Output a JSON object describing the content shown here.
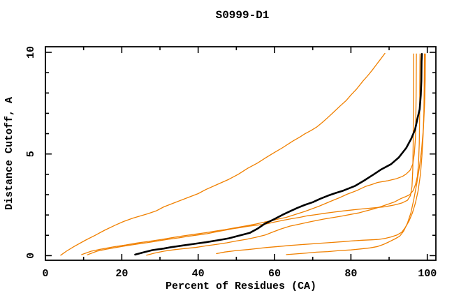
{
  "title": "S0999-D1",
  "axes": {
    "xlabel": "Percent of Residues (CA)",
    "ylabel": "Distance Cutoff, A",
    "x_major_ticks": [
      0,
      20,
      40,
      60,
      80,
      100
    ],
    "x_minor_ticks": [
      10,
      30,
      50,
      70,
      90
    ],
    "y_major_ticks": [
      0,
      5,
      10
    ],
    "y_minor_ticks": [
      1,
      2,
      3,
      4,
      6,
      7,
      8,
      9
    ],
    "xlim": [
      0,
      100
    ],
    "ylim": [
      0,
      10
    ]
  },
  "colors": {
    "curve_orange": "#f08000",
    "curve_black": "#000000",
    "frame": "#000000",
    "background": "#ffffff"
  },
  "chart_data": {
    "type": "line",
    "title": "S0999-D1",
    "xlabel": "Percent of Residues (CA)",
    "ylabel": "Distance Cutoff, A",
    "xlim": [
      0,
      100
    ],
    "ylim": [
      0,
      10
    ],
    "grid": false,
    "legend": "none",
    "series": [
      {
        "name": "curve-1",
        "color": "#f08000",
        "width": 1.3,
        "points": [
          [
            4,
            0.02
          ],
          [
            5.5,
            0.22
          ],
          [
            7.5,
            0.45
          ],
          [
            10.4,
            0.75
          ],
          [
            13,
            1.0
          ],
          [
            15.5,
            1.25
          ],
          [
            18.3,
            1.5
          ],
          [
            20.5,
            1.68
          ],
          [
            23,
            1.85
          ],
          [
            26.8,
            2.06
          ],
          [
            29,
            2.2
          ],
          [
            31,
            2.4
          ],
          [
            34,
            2.62
          ],
          [
            37.2,
            2.85
          ],
          [
            40,
            3.05
          ],
          [
            42,
            3.25
          ],
          [
            45,
            3.5
          ],
          [
            48,
            3.75
          ],
          [
            50.5,
            4.0
          ],
          [
            53,
            4.3
          ],
          [
            55.5,
            4.55
          ],
          [
            58,
            4.85
          ],
          [
            60,
            5.08
          ],
          [
            62,
            5.3
          ],
          [
            64.9,
            5.65
          ],
          [
            66.5,
            5.82
          ],
          [
            68,
            6.0
          ],
          [
            69.5,
            6.15
          ],
          [
            71,
            6.32
          ],
          [
            72.5,
            6.55
          ],
          [
            74,
            6.8
          ],
          [
            75.7,
            7.1
          ],
          [
            77.4,
            7.4
          ],
          [
            78.7,
            7.62
          ],
          [
            80,
            7.9
          ],
          [
            81.5,
            8.2
          ],
          [
            83.2,
            8.6
          ],
          [
            84.4,
            8.85
          ],
          [
            85.5,
            9.1
          ],
          [
            86.5,
            9.35
          ],
          [
            87.5,
            9.6
          ],
          [
            88.9,
            9.95
          ]
        ]
      },
      {
        "name": "curve-2",
        "color": "#f08000",
        "width": 1.3,
        "points": [
          [
            9.5,
            0.05
          ],
          [
            12,
            0.22
          ],
          [
            14,
            0.3
          ],
          [
            18,
            0.44
          ],
          [
            21,
            0.52
          ],
          [
            24,
            0.62
          ],
          [
            27,
            0.7
          ],
          [
            30.5,
            0.8
          ],
          [
            33,
            0.88
          ],
          [
            36,
            0.97
          ],
          [
            39,
            1.05
          ],
          [
            42,
            1.13
          ],
          [
            45,
            1.22
          ],
          [
            47,
            1.28
          ],
          [
            49,
            1.35
          ],
          [
            51.2,
            1.42
          ],
          [
            53,
            1.48
          ],
          [
            55,
            1.55
          ],
          [
            57.6,
            1.66
          ],
          [
            59.4,
            1.72
          ],
          [
            61,
            1.8
          ],
          [
            63,
            1.88
          ],
          [
            65,
            2.0
          ],
          [
            68,
            2.18
          ],
          [
            71.5,
            2.42
          ],
          [
            75.3,
            2.72
          ],
          [
            77,
            2.85
          ],
          [
            79,
            3.02
          ],
          [
            81.5,
            3.2
          ],
          [
            83.8,
            3.4
          ],
          [
            85.5,
            3.5
          ],
          [
            87,
            3.6
          ],
          [
            89.5,
            3.68
          ],
          [
            91.8,
            3.78
          ],
          [
            93.5,
            3.9
          ],
          [
            94.5,
            4.02
          ],
          [
            95.5,
            4.2
          ],
          [
            96.2,
            4.5
          ],
          [
            96.6,
            5.0
          ],
          [
            96.9,
            5.8
          ],
          [
            97.0,
            6.8
          ],
          [
            97.1,
            8.2
          ],
          [
            97.15,
            9.92
          ]
        ]
      },
      {
        "name": "curve-3",
        "color": "#f08000",
        "width": 1.3,
        "points": [
          [
            11,
            0.04
          ],
          [
            13.5,
            0.22
          ],
          [
            16,
            0.32
          ],
          [
            19,
            0.42
          ],
          [
            21,
            0.48
          ],
          [
            24,
            0.57
          ],
          [
            27,
            0.65
          ],
          [
            30,
            0.74
          ],
          [
            32,
            0.8
          ],
          [
            35,
            0.88
          ],
          [
            37,
            0.94
          ],
          [
            40,
            1.02
          ],
          [
            42.4,
            1.08
          ],
          [
            45,
            1.18
          ],
          [
            47,
            1.25
          ],
          [
            49,
            1.32
          ],
          [
            51,
            1.38
          ],
          [
            53,
            1.44
          ],
          [
            55,
            1.49
          ],
          [
            57.6,
            1.55
          ],
          [
            60,
            1.65
          ],
          [
            62,
            1.73
          ],
          [
            64.5,
            1.82
          ],
          [
            66.5,
            1.88
          ],
          [
            68.6,
            1.96
          ],
          [
            71,
            2.02
          ],
          [
            73,
            2.08
          ],
          [
            75.5,
            2.14
          ],
          [
            78,
            2.2
          ],
          [
            80.5,
            2.25
          ],
          [
            83,
            2.3
          ],
          [
            85.5,
            2.34
          ],
          [
            88.7,
            2.4
          ],
          [
            90.5,
            2.46
          ],
          [
            92,
            2.52
          ],
          [
            93.5,
            2.6
          ],
          [
            94.8,
            2.72
          ],
          [
            95.6,
            2.95
          ],
          [
            96.0,
            3.4
          ],
          [
            96.2,
            4.2
          ],
          [
            96.3,
            5.5
          ],
          [
            96.35,
            7.0
          ],
          [
            96.4,
            9.92
          ]
        ]
      },
      {
        "name": "curve-4",
        "color": "#f08000",
        "width": 1.3,
        "points": [
          [
            26.5,
            0.02
          ],
          [
            28.5,
            0.12
          ],
          [
            31,
            0.22
          ],
          [
            34,
            0.3
          ],
          [
            36.5,
            0.35
          ],
          [
            39.3,
            0.4
          ],
          [
            42,
            0.48
          ],
          [
            45,
            0.56
          ],
          [
            47.5,
            0.63
          ],
          [
            50,
            0.72
          ],
          [
            52.5,
            0.8
          ],
          [
            55,
            0.9
          ],
          [
            57.6,
            1.02
          ],
          [
            59.4,
            1.15
          ],
          [
            61.5,
            1.3
          ],
          [
            64,
            1.45
          ],
          [
            66.5,
            1.55
          ],
          [
            69,
            1.65
          ],
          [
            71,
            1.73
          ],
          [
            73,
            1.8
          ],
          [
            75.5,
            1.88
          ],
          [
            77.7,
            1.95
          ],
          [
            80,
            2.03
          ],
          [
            82,
            2.1
          ],
          [
            84,
            2.2
          ],
          [
            86,
            2.3
          ],
          [
            88,
            2.42
          ],
          [
            90,
            2.55
          ],
          [
            91.5,
            2.65
          ],
          [
            93,
            2.8
          ],
          [
            94.3,
            2.9
          ],
          [
            95.4,
            3.0
          ],
          [
            96.3,
            3.2
          ],
          [
            96.9,
            3.5
          ],
          [
            97.4,
            3.9
          ],
          [
            97.7,
            4.5
          ],
          [
            97.9,
            5.5
          ],
          [
            98.0,
            7.0
          ],
          [
            98.05,
            8.5
          ],
          [
            98.1,
            9.92
          ]
        ]
      },
      {
        "name": "curve-5",
        "color": "#f08000",
        "width": 1.3,
        "points": [
          [
            44.8,
            0.1
          ],
          [
            47,
            0.18
          ],
          [
            50,
            0.25
          ],
          [
            53,
            0.3
          ],
          [
            55,
            0.34
          ],
          [
            58,
            0.4
          ],
          [
            61,
            0.45
          ],
          [
            64,
            0.5
          ],
          [
            66,
            0.53
          ],
          [
            69,
            0.57
          ],
          [
            72,
            0.61
          ],
          [
            75,
            0.65
          ],
          [
            78,
            0.69
          ],
          [
            80,
            0.72
          ],
          [
            83,
            0.76
          ],
          [
            85.5,
            0.78
          ],
          [
            87.3,
            0.8
          ],
          [
            89,
            0.85
          ],
          [
            90.5,
            0.92
          ],
          [
            92.1,
            1.02
          ],
          [
            93.3,
            1.15
          ],
          [
            94.3,
            1.4
          ],
          [
            95.2,
            1.7
          ],
          [
            96.1,
            2.1
          ],
          [
            96.9,
            2.6
          ],
          [
            97.6,
            3.2
          ],
          [
            98.2,
            4.0
          ],
          [
            98.6,
            4.9
          ],
          [
            98.9,
            5.9
          ],
          [
            99.1,
            7.0
          ],
          [
            99.2,
            8.2
          ],
          [
            99.25,
            9.92
          ]
        ]
      },
      {
        "name": "curve-6",
        "color": "#f08000",
        "width": 1.3,
        "points": [
          [
            63.1,
            0.05
          ],
          [
            65,
            0.08
          ],
          [
            68,
            0.12
          ],
          [
            71,
            0.17
          ],
          [
            74,
            0.2
          ],
          [
            77,
            0.25
          ],
          [
            80,
            0.28
          ],
          [
            82.5,
            0.33
          ],
          [
            85,
            0.38
          ],
          [
            87,
            0.45
          ],
          [
            88.5,
            0.55
          ],
          [
            90,
            0.68
          ],
          [
            91.5,
            0.82
          ],
          [
            92.8,
            0.96
          ],
          [
            93.8,
            1.2
          ],
          [
            94.8,
            1.6
          ],
          [
            95.7,
            2.1
          ],
          [
            96.5,
            2.8
          ],
          [
            97.2,
            3.5
          ],
          [
            97.9,
            4.3
          ],
          [
            98.5,
            5.2
          ],
          [
            99.0,
            6.3
          ],
          [
            99.3,
            7.5
          ],
          [
            99.45,
            8.7
          ],
          [
            99.5,
            9.92
          ]
        ]
      },
      {
        "name": "highlighted-model",
        "color": "#000000",
        "width": 2.6,
        "points": [
          [
            23.5,
            0.05
          ],
          [
            26,
            0.18
          ],
          [
            28,
            0.27
          ],
          [
            31,
            0.35
          ],
          [
            33,
            0.42
          ],
          [
            36,
            0.5
          ],
          [
            39,
            0.58
          ],
          [
            42,
            0.66
          ],
          [
            45,
            0.75
          ],
          [
            48,
            0.85
          ],
          [
            50,
            0.95
          ],
          [
            53.5,
            1.12
          ],
          [
            55.5,
            1.32
          ],
          [
            57.5,
            1.58
          ],
          [
            60,
            1.8
          ],
          [
            62,
            2.0
          ],
          [
            64,
            2.18
          ],
          [
            66,
            2.35
          ],
          [
            68,
            2.5
          ],
          [
            70,
            2.63
          ],
          [
            72,
            2.8
          ],
          [
            74,
            2.95
          ],
          [
            76,
            3.08
          ],
          [
            78,
            3.2
          ],
          [
            81,
            3.42
          ],
          [
            83.5,
            3.7
          ],
          [
            86,
            4.0
          ],
          [
            88,
            4.25
          ],
          [
            90.5,
            4.5
          ],
          [
            92.5,
            4.82
          ],
          [
            94.5,
            5.3
          ],
          [
            95.8,
            5.75
          ],
          [
            96.8,
            6.2
          ],
          [
            97.5,
            6.8
          ],
          [
            98.0,
            7.2
          ],
          [
            98.3,
            7.9
          ],
          [
            98.45,
            8.6
          ],
          [
            98.5,
            9.55
          ],
          [
            98.6,
            9.92
          ]
        ]
      }
    ]
  }
}
